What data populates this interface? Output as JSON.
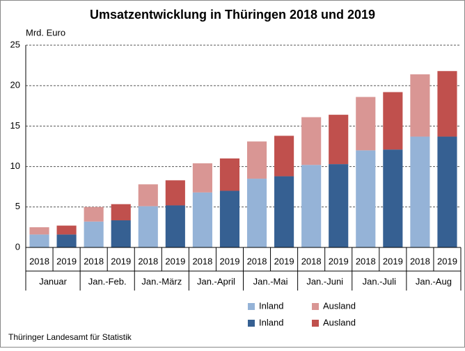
{
  "chart_data": {
    "type": "grouped-stacked-bar",
    "title": "Umsatzentwicklung in Thüringen 2018 und 2019",
    "y_label": "Mrd. Euro",
    "source": "Thüringer Landesamt für Statistik",
    "categories": [
      "Januar",
      "Jan.-Feb.",
      "Jan.-März",
      "Jan.-April",
      "Jan.-Mai",
      "Jan.-Juni",
      "Jan.-Juli",
      "Jan.-Aug"
    ],
    "subcategories": [
      "2018",
      "2019"
    ],
    "series": [
      {
        "name": "Inland",
        "color": "#95b3d7",
        "stack": 0,
        "values": [
          1.6,
          3.2,
          5.1,
          6.8,
          8.5,
          10.2,
          12.0,
          13.7
        ]
      },
      {
        "name": "Ausland",
        "color": "#d99694",
        "stack": 0,
        "values": [
          0.9,
          1.8,
          2.7,
          3.6,
          4.6,
          5.9,
          6.6,
          7.7
        ]
      },
      {
        "name": "Inland",
        "color": "#366092",
        "stack": 1,
        "values": [
          1.6,
          3.35,
          5.2,
          7.0,
          8.8,
          10.3,
          12.1,
          13.7
        ]
      },
      {
        "name": "Ausland",
        "color": "#c0504d",
        "stack": 1,
        "values": [
          1.1,
          2.0,
          3.1,
          4.0,
          5.0,
          6.1,
          7.1,
          8.1
        ]
      }
    ],
    "ylim": [
      0,
      25
    ],
    "yticks": [
      0,
      5,
      10,
      15,
      20,
      25
    ],
    "grid": true
  }
}
